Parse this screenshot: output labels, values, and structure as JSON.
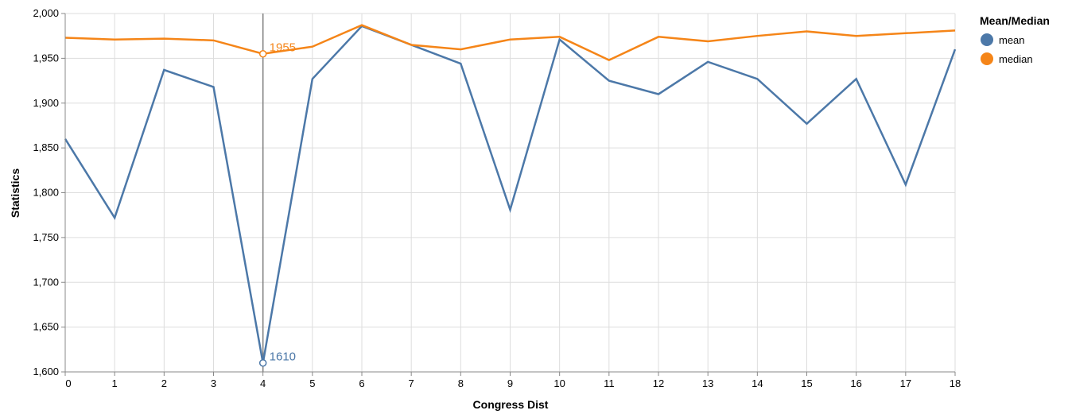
{
  "chart_data": {
    "type": "line",
    "xlabel": "Congress Dist",
    "ylabel": "Statistics",
    "x": [
      0,
      1,
      2,
      3,
      4,
      5,
      6,
      7,
      8,
      9,
      10,
      11,
      12,
      13,
      14,
      15,
      16,
      17,
      18
    ],
    "xlim": [
      0,
      18
    ],
    "ylim": [
      1600,
      2000
    ],
    "y_ticks": [
      1600,
      1650,
      1700,
      1750,
      1800,
      1850,
      1900,
      1950,
      2000
    ],
    "y_tick_labels": [
      "1,600",
      "1,650",
      "1,700",
      "1,750",
      "1,800",
      "1,850",
      "1,900",
      "1,950",
      "2,000"
    ],
    "x_tick_labels": [
      "0",
      "1",
      "2",
      "3",
      "4",
      "5",
      "6",
      "7",
      "8",
      "9",
      "10",
      "11",
      "12",
      "13",
      "14",
      "15",
      "16",
      "17",
      "18"
    ],
    "grid": true,
    "legend": {
      "title": "Mean/Median",
      "position": "top-right"
    },
    "series": [
      {
        "name": "mean",
        "color": "#4c78a8",
        "values": [
          1860,
          1772,
          1937,
          1918,
          1610,
          1927,
          1986,
          1965,
          1944,
          1781,
          1971,
          1925,
          1910,
          1946,
          1927,
          1877,
          1927,
          1809,
          1960
        ]
      },
      {
        "name": "median",
        "color": "#f58518",
        "values": [
          1973,
          1971,
          1972,
          1970,
          1955,
          1963,
          1987,
          1965,
          1960,
          1971,
          1974,
          1948,
          1974,
          1969,
          1975,
          1980,
          1975,
          1978,
          1981
        ]
      }
    ],
    "rule_x": 4,
    "annotations": [
      {
        "series": "median",
        "x": 4,
        "y": 1955,
        "label": "1955"
      },
      {
        "series": "mean",
        "x": 4,
        "y": 1610,
        "label": "1610"
      }
    ]
  }
}
